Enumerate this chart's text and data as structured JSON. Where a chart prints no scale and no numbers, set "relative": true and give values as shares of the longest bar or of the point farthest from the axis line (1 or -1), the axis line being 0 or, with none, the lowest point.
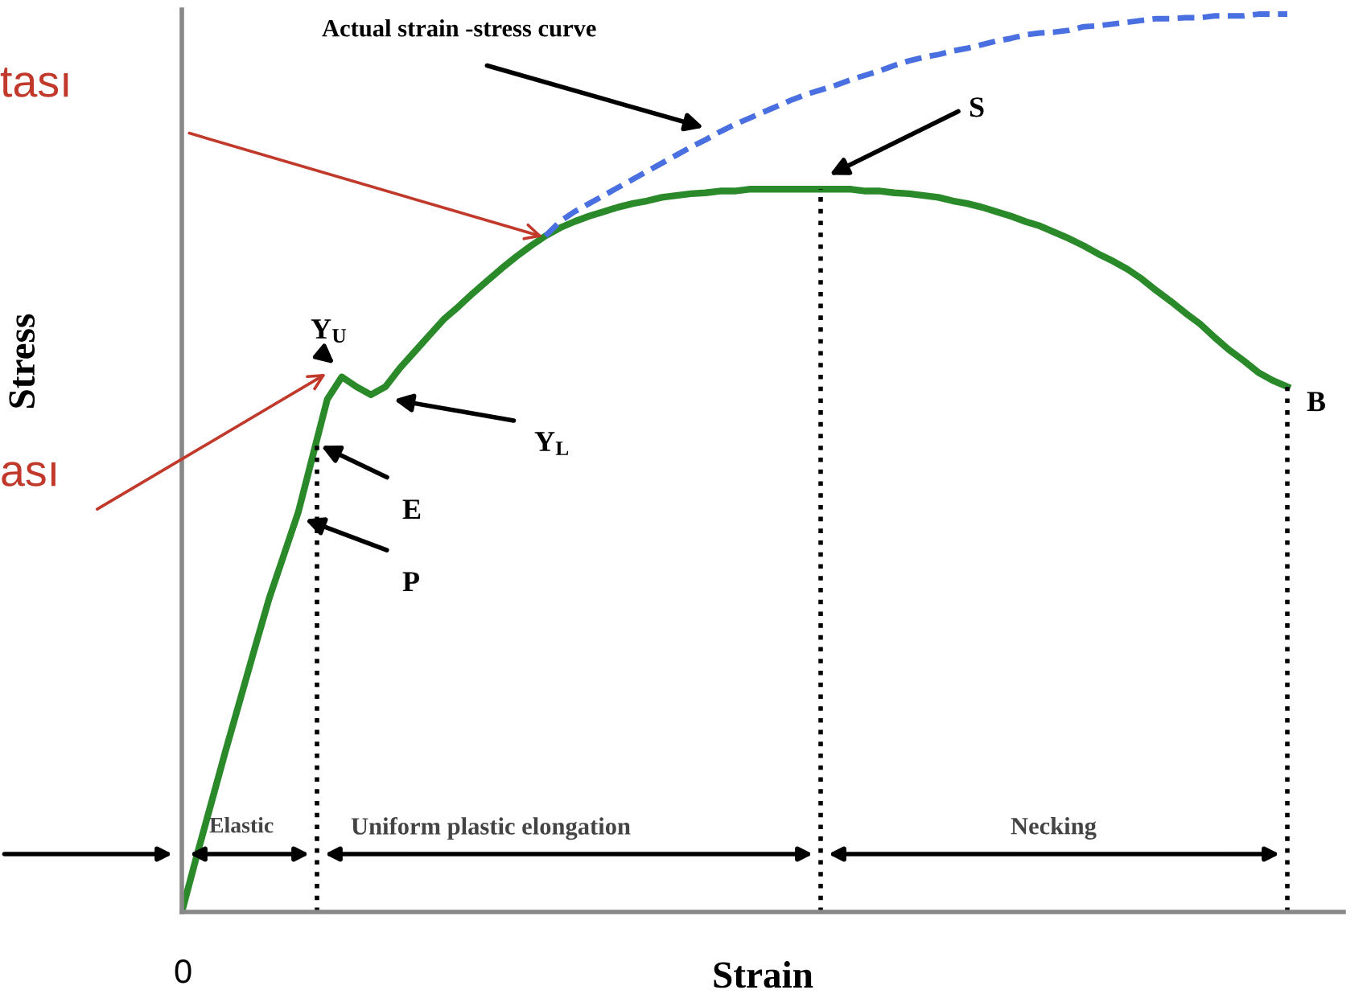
{
  "chart_data": {
    "type": "line",
    "relative": true,
    "xlabel": "Strain",
    "ylabel": "Stress",
    "categories": [
      null,
      null,
      null,
      null,
      null,
      null,
      null,
      null,
      null,
      null,
      null,
      null,
      null,
      null,
      null,
      null,
      null,
      null,
      null,
      null,
      null,
      null,
      null,
      null,
      null,
      null,
      null,
      null,
      null,
      null,
      null,
      null,
      null,
      null,
      null,
      null,
      null,
      null,
      null,
      null,
      null,
      null,
      null,
      null,
      null,
      null,
      null,
      null,
      null,
      null,
      null,
      null,
      null,
      null,
      null,
      null,
      null,
      null,
      null,
      null,
      null,
      null,
      null,
      null,
      null,
      null,
      null,
      null,
      null,
      null,
      null,
      null,
      null,
      null,
      null,
      null,
      null
    ],
    "series": [
      {
        "color": "#2a8a2a",
        "line_style": "solid",
        "values": [
          0,
          0.061,
          0.12,
          0.179,
          0.236,
          0.293,
          0.349,
          0.397,
          0.445,
          0.508,
          0.571,
          0.596,
          0.585,
          0.576,
          0.585,
          0.606,
          0.624,
          0.642,
          0.66,
          0.674,
          0.689,
          0.703,
          0.717,
          0.73,
          0.742,
          0.753,
          0.762,
          0.769,
          0.775,
          0.78,
          0.785,
          0.789,
          0.792,
          0.796,
          0.798,
          0.8,
          0.801,
          0.803,
          0.803,
          0.805,
          0.805,
          0.805,
          0.805,
          0.805,
          0.805,
          0.805,
          0.805,
          0.803,
          0.803,
          0.801,
          0.8,
          0.798,
          0.796,
          0.792,
          0.789,
          0.785,
          0.78,
          0.775,
          0.769,
          0.764,
          0.757,
          0.75,
          0.742,
          0.733,
          0.725,
          0.716,
          0.705,
          0.692,
          0.68,
          0.667,
          0.655,
          0.64,
          0.626,
          0.614,
          0.601,
          0.592,
          0.585
        ]
      },
      {
        "color": "#4a6fe0",
        "line_style": "dashed",
        "values": [
          null,
          null,
          null,
          null,
          null,
          null,
          null,
          null,
          null,
          null,
          null,
          null,
          null,
          null,
          null,
          null,
          null,
          null,
          null,
          null,
          null,
          null,
          null,
          null,
          null,
          0.753,
          0.769,
          0.78,
          0.789,
          0.798,
          0.807,
          0.816,
          0.825,
          0.834,
          0.843,
          0.852,
          0.86,
          0.869,
          0.877,
          0.884,
          0.891,
          0.898,
          0.905,
          0.911,
          0.916,
          0.921,
          0.927,
          0.932,
          0.937,
          0.943,
          0.948,
          0.952,
          0.955,
          0.959,
          0.962,
          0.966,
          0.97,
          0.973,
          0.977,
          0.979,
          0.98,
          0.982,
          0.986,
          0.987,
          0.989,
          0.991,
          0.993,
          0.995,
          0.995,
          0.996,
          0.996,
          0.998,
          0.998,
          0.998,
          1,
          1,
          1
        ]
      }
    ],
    "annotations": [
      "Actual strain -stress curve",
      "S",
      "Y$_{U}$",
      "Y$_{L}$",
      "E",
      "P",
      "B",
      "Elastic",
      "Uniform plastic elongation",
      "Necking",
      "tası",
      "ası",
      "0"
    ],
    "legend": false,
    "marker": "none"
  }
}
